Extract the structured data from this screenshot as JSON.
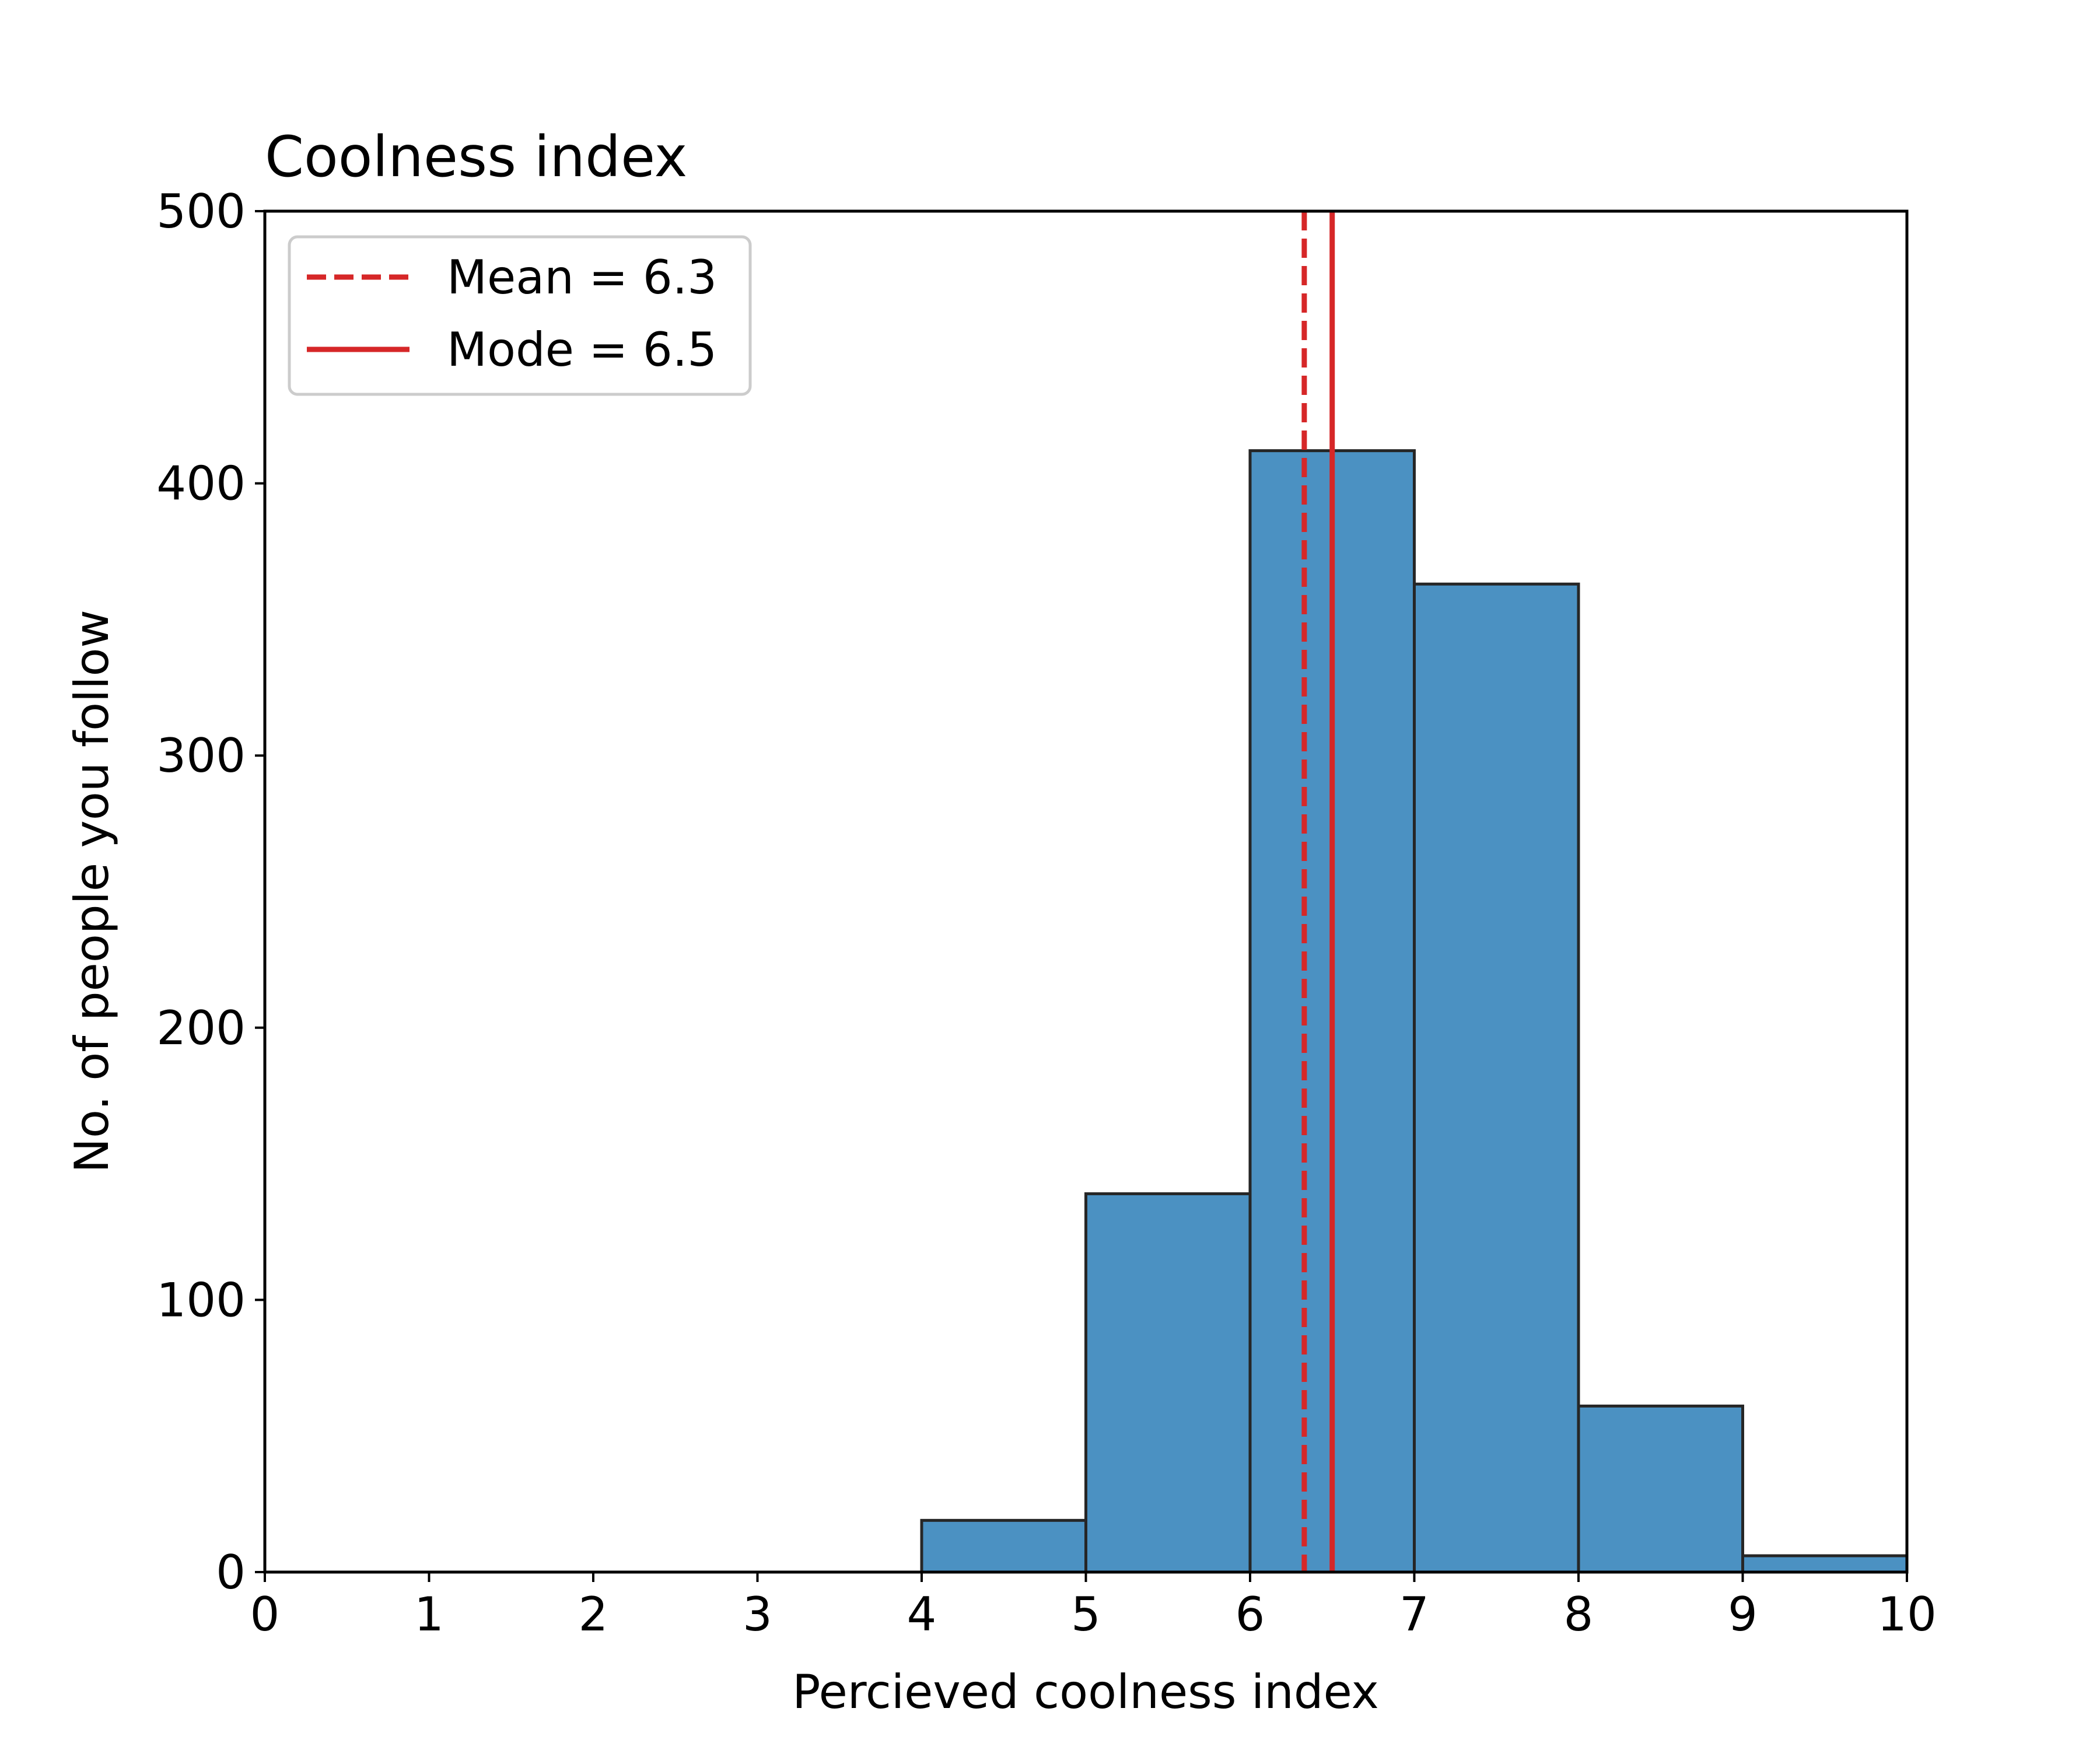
{
  "chart_data": {
    "type": "bar",
    "title": "Coolness index",
    "xlabel": "Percieved coolness index",
    "ylabel": "No. of people you follow",
    "xlim": [
      0,
      10
    ],
    "ylim": [
      0,
      500
    ],
    "xticks": [
      "0",
      "1",
      "2",
      "3",
      "4",
      "5",
      "6",
      "7",
      "8",
      "9",
      "10"
    ],
    "yticks": [
      "0",
      "100",
      "200",
      "300",
      "400",
      "500"
    ],
    "grid": false,
    "legend_position": "top-left",
    "bins": [
      {
        "x0": 4,
        "x1": 5,
        "count": 19
      },
      {
        "x0": 5,
        "x1": 6,
        "count": 139
      },
      {
        "x0": 6,
        "x1": 7,
        "count": 412
      },
      {
        "x0": 7,
        "x1": 8,
        "count": 363
      },
      {
        "x0": 8,
        "x1": 9,
        "count": 61
      },
      {
        "x0": 9,
        "x1": 10,
        "count": 6
      }
    ],
    "bar_color": "#4b91c2",
    "bar_edge_color": "#262626",
    "reference_lines": [
      {
        "label": "Mean = 6.3",
        "x": 6.33,
        "style": "dashed",
        "color": "#d62728"
      },
      {
        "label": "Mode = 6.5",
        "x": 6.5,
        "style": "solid",
        "color": "#d62728"
      }
    ]
  }
}
